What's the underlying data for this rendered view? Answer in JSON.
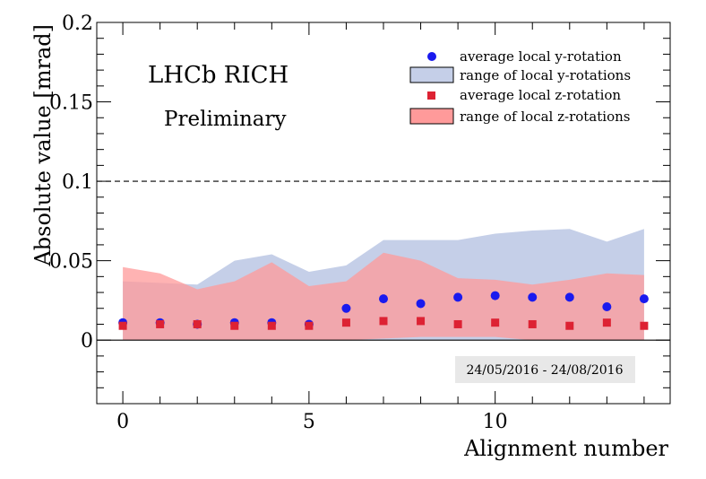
{
  "chart_data": {
    "type": "scatter",
    "title": "LHCb RICH",
    "subtitle": "Preliminary",
    "xlabel": "Alignment number",
    "ylabel": "Absolute value [mrad]",
    "date_range": "24/05/2016 - 24/08/2016",
    "xlim": [
      -0.7,
      14.7
    ],
    "ylim": [
      -0.04,
      0.2
    ],
    "x_ticks": [
      0,
      5,
      10
    ],
    "y_ticks": [
      0,
      0.05,
      0.1,
      0.15,
      0.2
    ],
    "y_tick_labels": [
      "0",
      "0.05",
      "0.1",
      "0.15",
      "0.2"
    ],
    "reference_line_y": 0.1,
    "legend_position": "top-right",
    "legend": [
      "average local y-rotation",
      "range of local y-rotations",
      "average local z-rotation",
      "range of local z-rotations"
    ],
    "x": [
      0,
      1,
      2,
      3,
      4,
      5,
      6,
      7,
      8,
      9,
      10,
      11,
      12,
      13,
      14
    ],
    "bands": [
      {
        "name": "range of local y-rotations",
        "color": "#c5cfe8",
        "low": [
          0,
          0,
          0,
          0,
          0,
          0,
          0,
          0,
          0,
          0,
          0,
          0,
          0,
          0,
          0
        ],
        "high": [
          0.037,
          0.036,
          0.035,
          0.05,
          0.054,
          0.043,
          0.047,
          0.063,
          0.063,
          0.063,
          0.067,
          0.069,
          0.07,
          0.062,
          0.07
        ]
      },
      {
        "name": "range of local z-rotations",
        "color": "#ff9a9a",
        "low": [
          0,
          0,
          0,
          0,
          0,
          0,
          0,
          0.001,
          0.002,
          0.002,
          0.002,
          0,
          0,
          0,
          0
        ],
        "high": [
          0.046,
          0.042,
          0.032,
          0.037,
          0.049,
          0.034,
          0.037,
          0.055,
          0.05,
          0.039,
          0.038,
          0.035,
          0.038,
          0.042,
          0.041
        ]
      }
    ],
    "series": [
      {
        "name": "average local y-rotation",
        "marker": "circle",
        "color": "#1a1aee",
        "values": [
          0.011,
          0.011,
          0.01,
          0.011,
          0.011,
          0.01,
          0.02,
          0.026,
          0.023,
          0.027,
          0.028,
          0.027,
          0.027,
          0.021,
          0.026
        ]
      },
      {
        "name": "average local z-rotation",
        "marker": "square",
        "color": "#dd2233",
        "values": [
          0.009,
          0.01,
          0.01,
          0.009,
          0.009,
          0.009,
          0.011,
          0.012,
          0.012,
          0.01,
          0.011,
          0.01,
          0.009,
          0.011,
          0.009
        ]
      }
    ]
  }
}
